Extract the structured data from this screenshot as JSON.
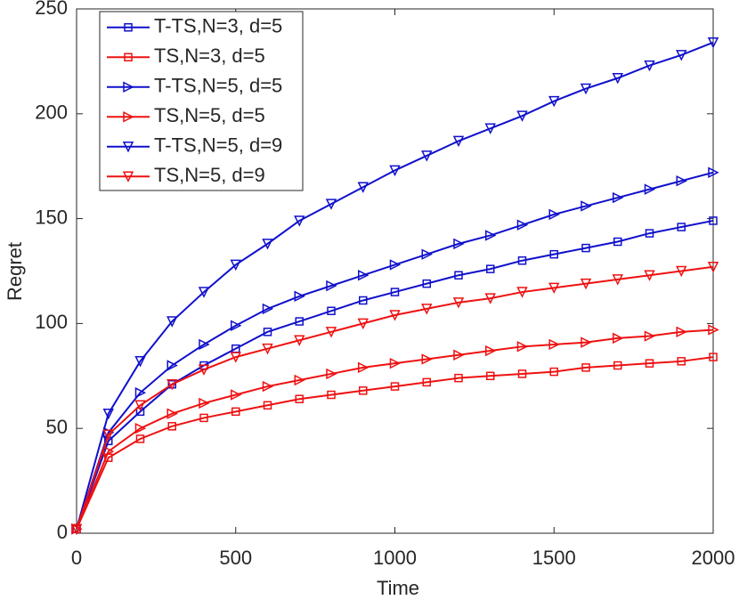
{
  "chart_data": {
    "type": "line",
    "xlabel": "Time",
    "ylabel": "Regret",
    "x": [
      0,
      100,
      200,
      300,
      400,
      500,
      600,
      700,
      800,
      900,
      1000,
      1100,
      1200,
      1300,
      1400,
      1500,
      1600,
      1700,
      1800,
      1900,
      2000
    ],
    "series": [
      {
        "name": "T-TS,N=3, d=5",
        "color": "#1010cc",
        "marker": "square",
        "values": [
          2,
          44,
          58,
          71,
          80,
          88,
          96,
          101,
          106,
          111,
          115,
          119,
          123,
          126,
          130,
          133,
          136,
          139,
          143,
          146,
          149
        ]
      },
      {
        "name": "TS,N=3, d=5",
        "color": "#ee1111",
        "marker": "square",
        "values": [
          2,
          36,
          45,
          51,
          55,
          58,
          61,
          64,
          66,
          68,
          70,
          72,
          74,
          75,
          76,
          77,
          79,
          80,
          81,
          82,
          84
        ]
      },
      {
        "name": "T-TS,N=5, d=5",
        "color": "#1010cc",
        "marker": "triangle-right",
        "values": [
          2,
          48,
          67,
          80,
          90,
          99,
          107,
          113,
          118,
          123,
          128,
          133,
          138,
          142,
          147,
          152,
          156,
          160,
          164,
          168,
          172
        ]
      },
      {
        "name": "TS,N=5, d=5",
        "color": "#ee1111",
        "marker": "triangle-right",
        "values": [
          2,
          39,
          50,
          57,
          62,
          66,
          70,
          73,
          76,
          79,
          81,
          83,
          85,
          87,
          89,
          90,
          91,
          93,
          94,
          96,
          97
        ]
      },
      {
        "name": "T-TS,N=5, d=9",
        "color": "#1010cc",
        "marker": "triangle-down",
        "values": [
          2,
          57,
          82,
          101,
          115,
          128,
          138,
          149,
          157,
          165,
          173,
          180,
          187,
          193,
          199,
          206,
          212,
          217,
          223,
          228,
          234
        ]
      },
      {
        "name": "TS,N=5, d=9",
        "color": "#ee1111",
        "marker": "triangle-down",
        "values": [
          2,
          47,
          61,
          71,
          78,
          84,
          88,
          92,
          96,
          100,
          104,
          107,
          110,
          112,
          115,
          117,
          119,
          121,
          123,
          125,
          127
        ]
      }
    ],
    "xlim": [
      0,
      2000
    ],
    "xticks": [
      0,
      500,
      1000,
      1500,
      2000
    ],
    "ylim": [
      0,
      250
    ],
    "yticks": [
      0,
      50,
      100,
      150,
      200,
      250
    ],
    "legend": "upper left",
    "grid": false
  }
}
